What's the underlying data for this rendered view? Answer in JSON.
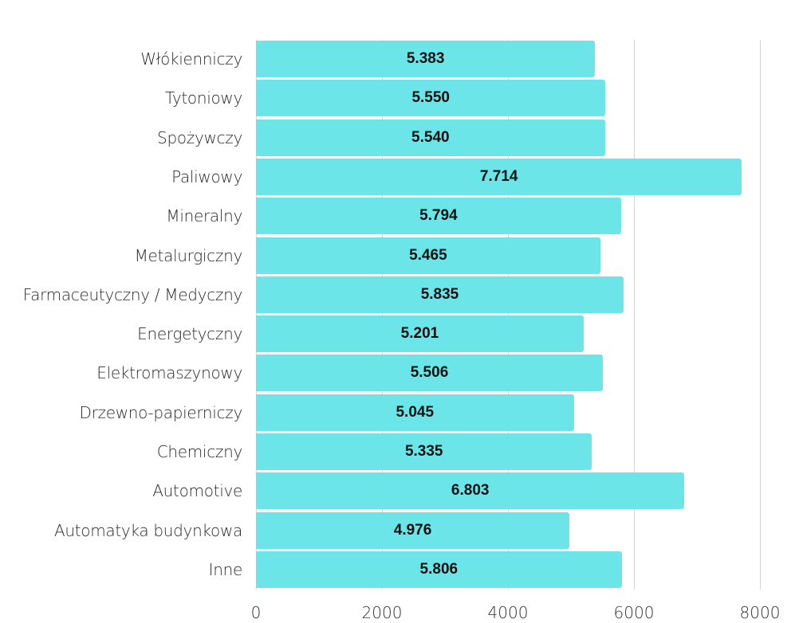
{
  "chart_data": {
    "type": "bar",
    "orientation": "horizontal",
    "title": "",
    "xlabel": "",
    "ylabel": "",
    "categories": [
      "Włókienniczy",
      "Tytoniowy",
      "Spożywczy",
      "Paliwowy",
      "Mineralny",
      "Metalurgiczny",
      "Farmaceutyczny / Medyczny",
      "Energetyczny",
      "Elektromaszynowy",
      "Drzewno-papierniczy",
      "Chemiczny",
      "Automotive",
      "Automatyka budynkowa",
      "Inne"
    ],
    "values": [
      5383,
      5550,
      5540,
      7714,
      5794,
      5465,
      5835,
      5201,
      5506,
      5045,
      5335,
      6803,
      4976,
      5806
    ],
    "value_labels": [
      "5.383",
      "5.550",
      "5.540",
      "7.714",
      "5.794",
      "5.465",
      "5.835",
      "5.201",
      "5.506",
      "5.045",
      "5.335",
      "6.803",
      "4.976",
      "5.806"
    ],
    "xlim": [
      0,
      8000
    ],
    "x_ticks": [
      0,
      2000,
      4000,
      6000,
      8000
    ],
    "x_tick_labels": [
      "0",
      "2000",
      "4000",
      "6000",
      "8000"
    ],
    "grid": true,
    "legend": null,
    "colors": {
      "bar": "#6ce5e8",
      "grid": "#d4d4d4",
      "value_text": "#111111",
      "label_text": "#2a2a2a"
    }
  }
}
